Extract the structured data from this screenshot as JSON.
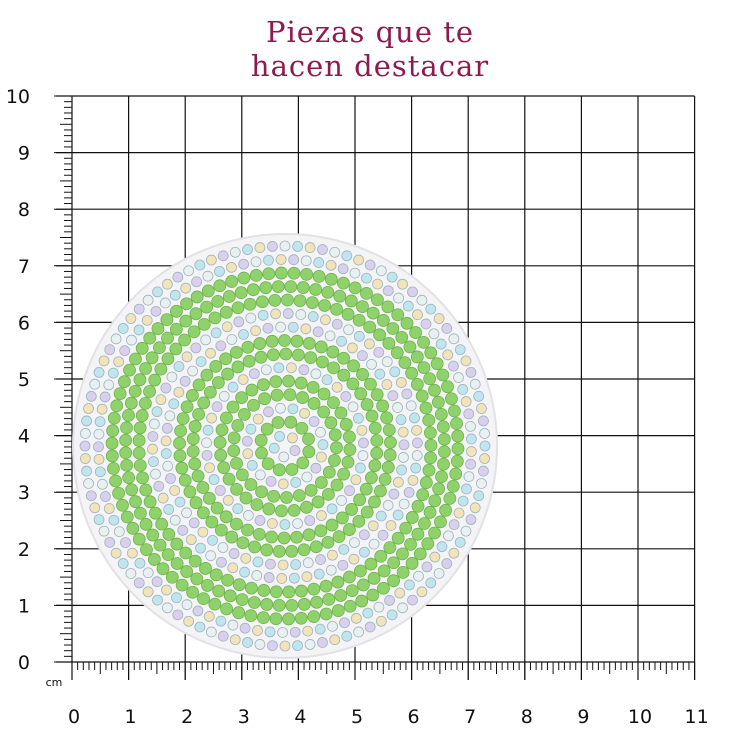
{
  "header": {
    "title_lines": [
      "Piezas que te",
      "hacen destacar"
    ]
  },
  "ruler": {
    "unit": "cm",
    "x_labels": [
      0,
      1,
      2,
      3,
      4,
      5,
      6,
      7,
      8,
      9,
      10,
      11
    ],
    "y_labels": [
      0,
      1,
      2,
      3,
      4,
      5,
      6,
      7,
      8,
      9,
      10
    ]
  }
}
